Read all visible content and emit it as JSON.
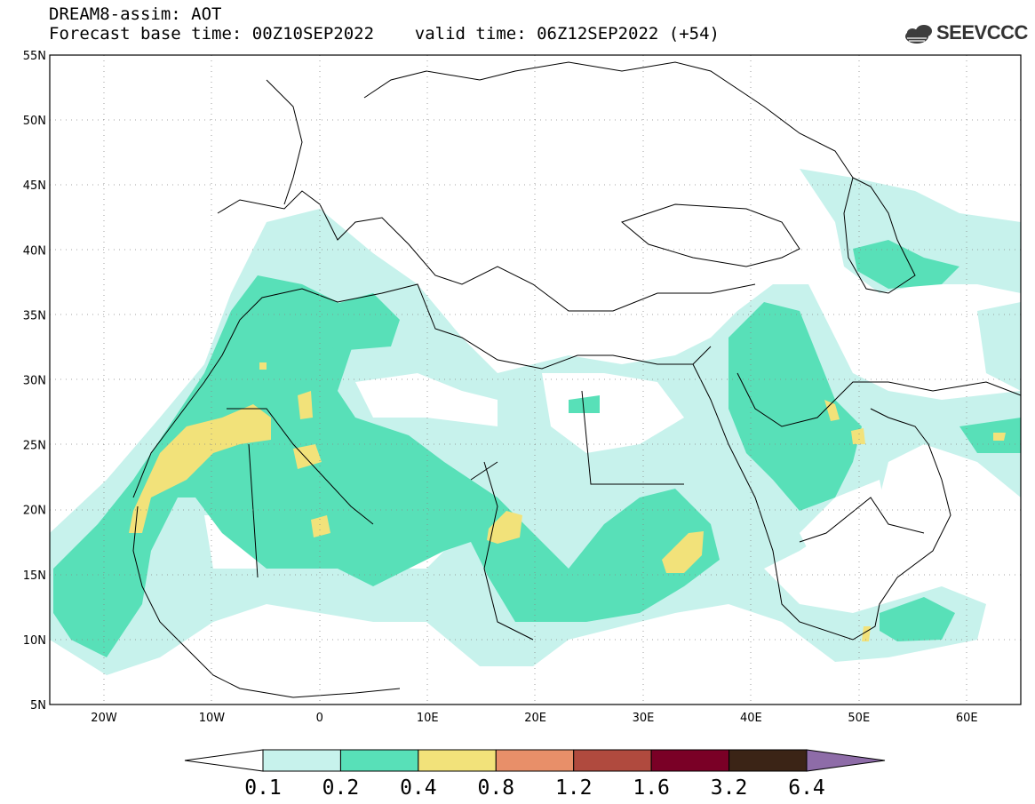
{
  "header": {
    "title_line1": "DREAM8-assim: AOT",
    "title_line2": "Forecast base time: 00Z10SEP2022    valid time: 06Z12SEP2022 (+54)",
    "logo_text": "SEEVCCC"
  },
  "map": {
    "lon_range": [
      -25,
      65
    ],
    "lat_range": [
      5,
      55
    ],
    "lat_ticks": [
      "55N",
      "50N",
      "45N",
      "40N",
      "35N",
      "30N",
      "25N",
      "20N",
      "15N",
      "10N",
      "5N"
    ],
    "lon_ticks": [
      "20W",
      "10W",
      "0",
      "10E",
      "20E",
      "30E",
      "40E",
      "50E",
      "60E"
    ],
    "field": "Aerosol Optical Thickness",
    "colors": {
      "c01": "#c7f2ec",
      "c02": "#58e0b8",
      "c04": "#f2e27a",
      "coast": "#000000"
    }
  },
  "colorbar": {
    "labels": [
      "0.1",
      "0.2",
      "0.4",
      "0.8",
      "1.2",
      "1.6",
      "3.2",
      "6.4"
    ],
    "colors": [
      "#c7f2ec",
      "#58e0b8",
      "#f2e27a",
      "#e88f69",
      "#b04a3e",
      "#7a0026",
      "#3b2416",
      "#8e6ca8"
    ]
  }
}
